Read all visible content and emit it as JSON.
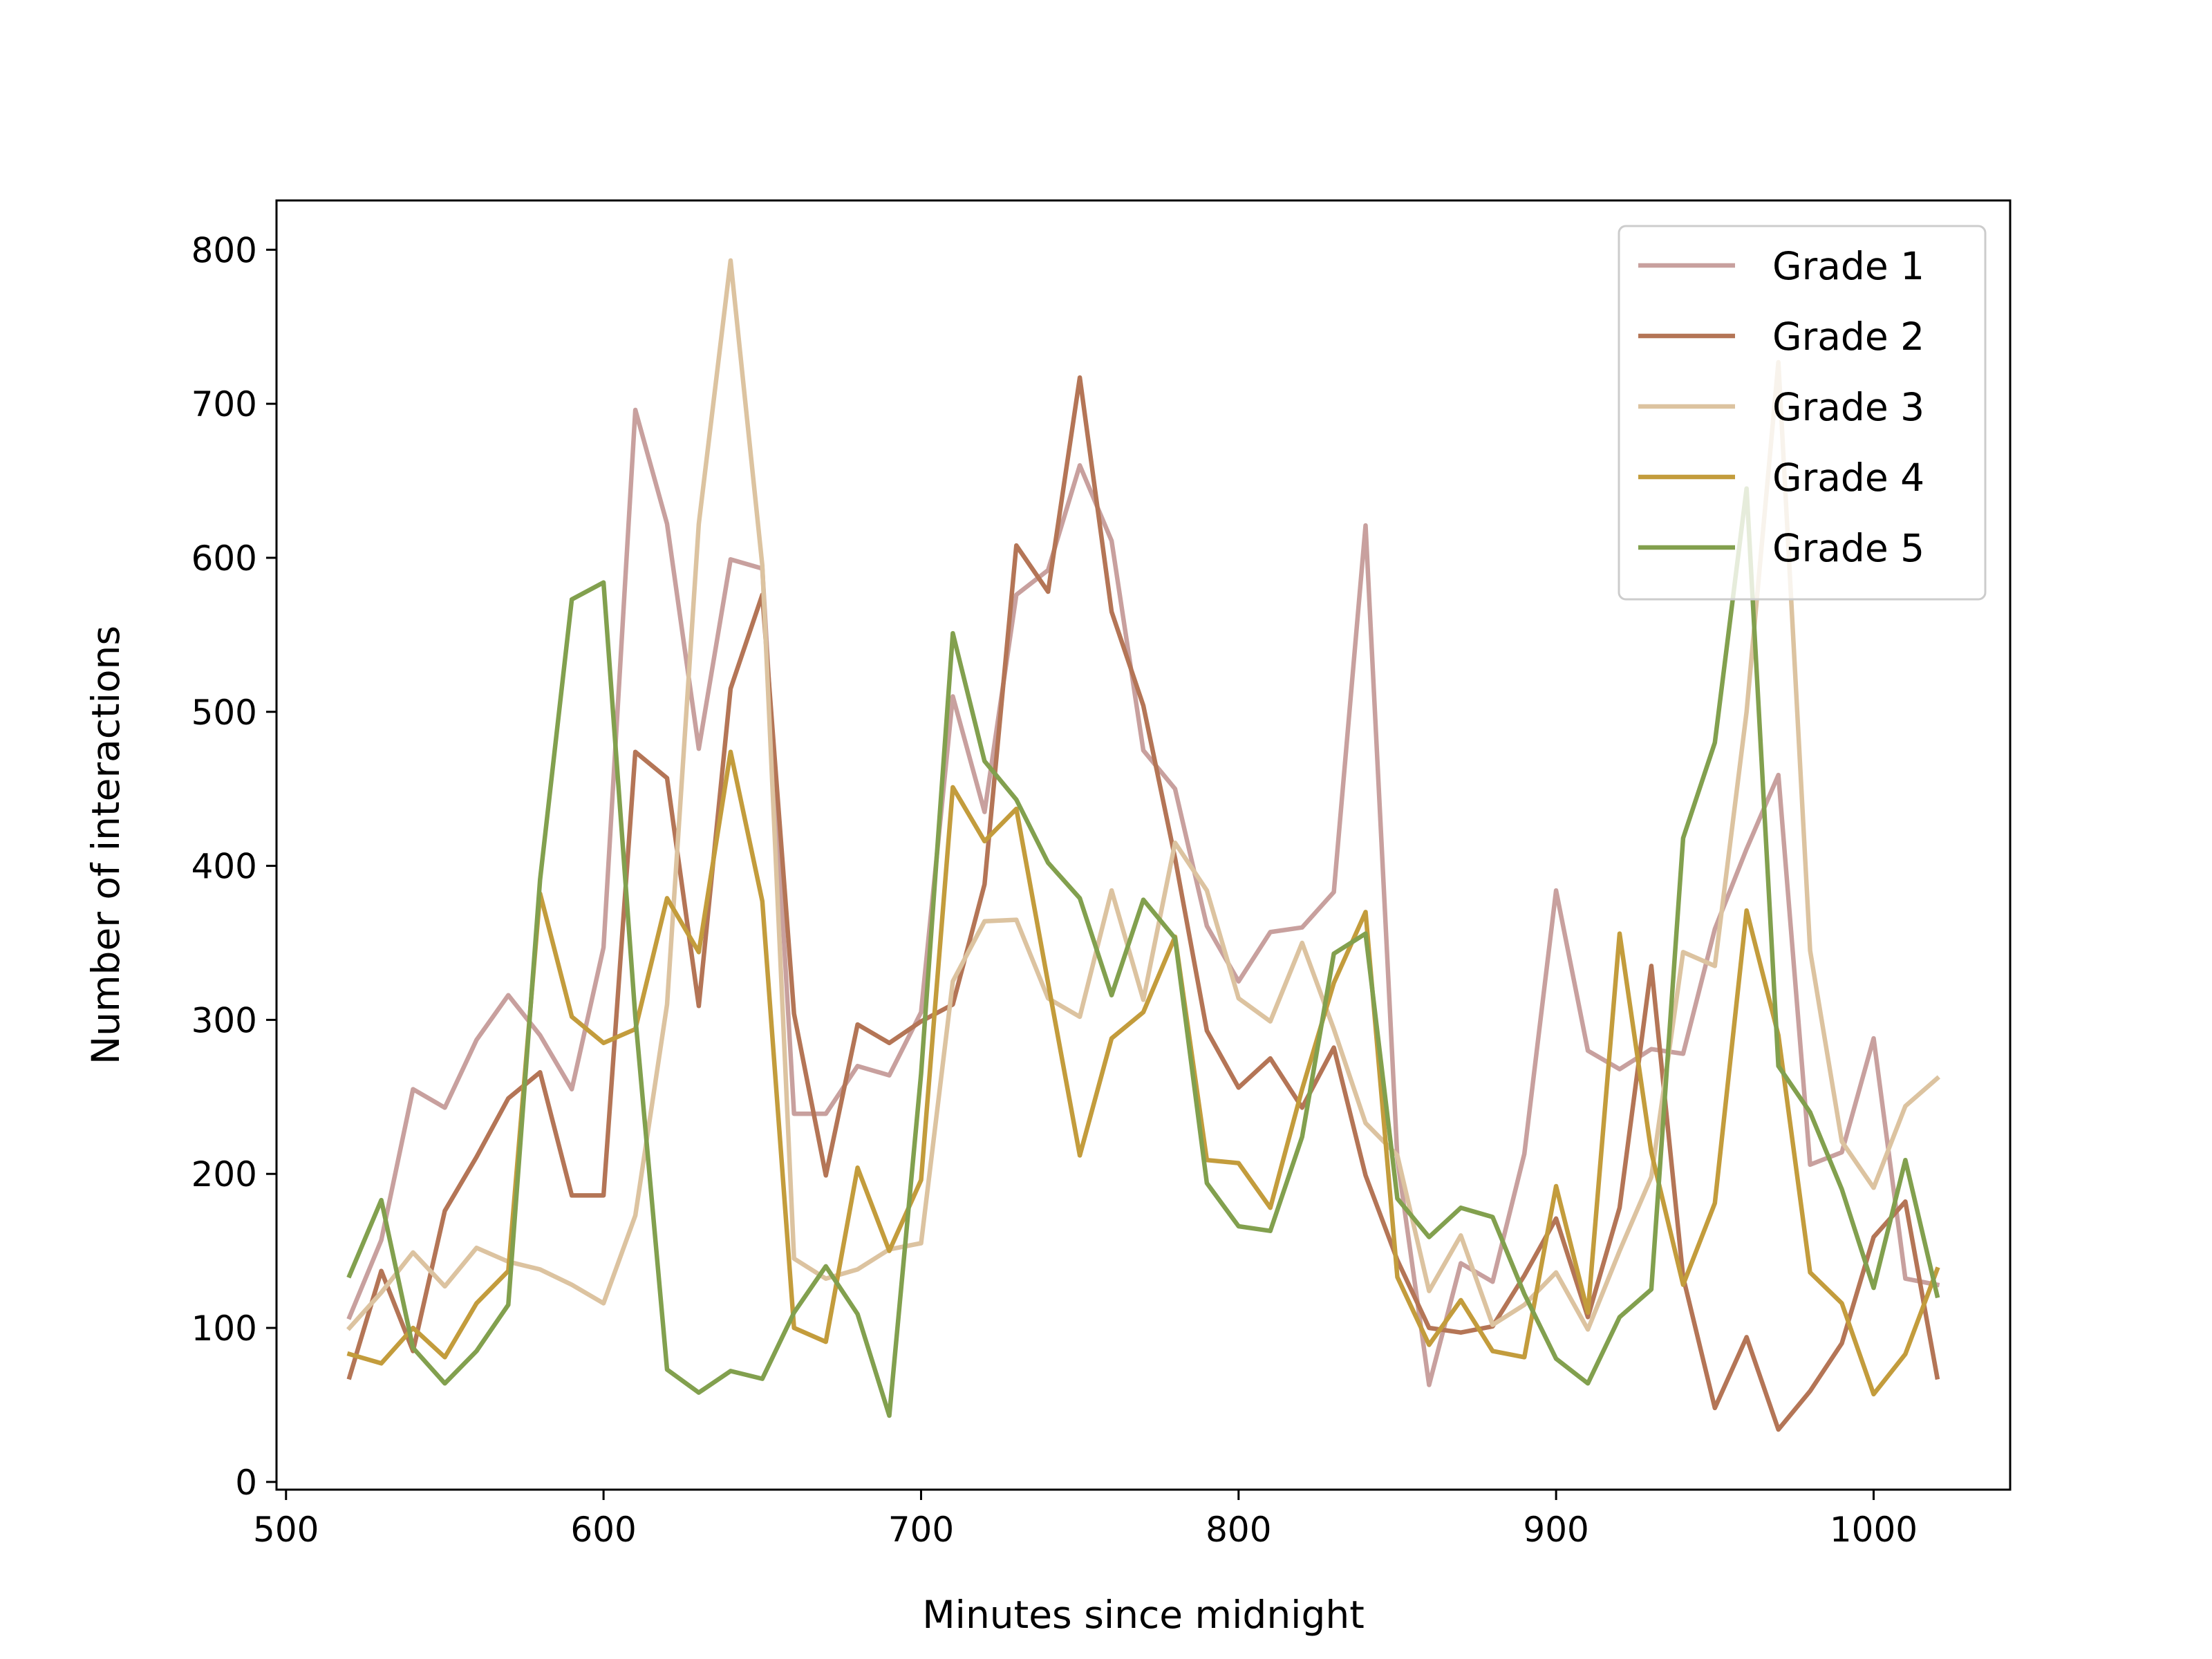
{
  "chart_data": {
    "type": "line",
    "title": "",
    "xlabel": "Minutes since midnight",
    "ylabel": "Number of interactions",
    "xlim": [
      497,
      1043
    ],
    "ylim": [
      -5,
      832
    ],
    "xticks": [
      500,
      600,
      700,
      800,
      900,
      1000
    ],
    "yticks": [
      0,
      100,
      200,
      300,
      400,
      500,
      600,
      700,
      800
    ],
    "grid": false,
    "legend_position": "top-right",
    "x": [
      520,
      530,
      540,
      550,
      560,
      570,
      580,
      590,
      600,
      610,
      620,
      630,
      640,
      650,
      660,
      670,
      680,
      690,
      700,
      710,
      720,
      730,
      740,
      750,
      760,
      770,
      780,
      790,
      800,
      810,
      820,
      830,
      840,
      850,
      860,
      870,
      880,
      890,
      900,
      910,
      920,
      930,
      940,
      950,
      960,
      970,
      980,
      990,
      1000,
      1010,
      1020
    ],
    "series": [
      {
        "name": "Grade 1",
        "color": "#c8a09e",
        "values": [
          107,
          157,
          255,
          243,
          287,
          316,
          290,
          255,
          347,
          696,
          622,
          476,
          599,
          593,
          239,
          239,
          270,
          264,
          305,
          510,
          435,
          576,
          592,
          660,
          611,
          475,
          450,
          361,
          325,
          357,
          360,
          383,
          621,
          210,
          63,
          142,
          130,
          213,
          384,
          280,
          268,
          281,
          278,
          359,
          411,
          459,
          206,
          214,
          288,
          132,
          128
        ]
      },
      {
        "name": "Grade 2",
        "color": "#b47556",
        "values": [
          68,
          137,
          85,
          176,
          211,
          249,
          266,
          186,
          186,
          474,
          457,
          309,
          515,
          576,
          304,
          199,
          297,
          285,
          299,
          310,
          388,
          608,
          578,
          717,
          565,
          504,
          405,
          293,
          256,
          275,
          243,
          282,
          199,
          144,
          100,
          97,
          101,
          134,
          171,
          107,
          178,
          335,
          133,
          48,
          94,
          34,
          59,
          90,
          159,
          182,
          68
        ]
      },
      {
        "name": "Grade 3",
        "color": "#dcc3a0",
        "values": [
          100,
          123,
          149,
          127,
          152,
          143,
          138,
          128,
          116,
          173,
          310,
          622,
          793,
          595,
          145,
          132,
          138,
          151,
          155,
          325,
          364,
          365,
          314,
          302,
          384,
          313,
          415,
          384,
          314,
          299,
          350,
          294,
          233,
          212,
          124,
          160,
          102,
          115,
          136,
          99,
          150,
          198,
          344,
          335,
          500,
          727,
          345,
          221,
          191,
          244,
          262
        ]
      },
      {
        "name": "Grade 4",
        "color": "#c39c3c",
        "values": [
          83,
          77,
          100,
          81,
          116,
          137,
          382,
          302,
          285,
          294,
          379,
          344,
          474,
          377,
          100,
          91,
          204,
          150,
          196,
          451,
          416,
          437,
          324,
          212,
          288,
          305,
          354,
          209,
          207,
          178,
          255,
          324,
          370,
          133,
          89,
          118,
          85,
          81,
          192,
          110,
          356,
          214,
          128,
          181,
          371,
          290,
          136,
          116,
          57,
          83,
          138
        ]
      },
      {
        "name": "Grade 5",
        "color": "#82a04e",
        "values": [
          134,
          183,
          87,
          64,
          85,
          115,
          391,
          573,
          584,
          302,
          73,
          58,
          72,
          67,
          110,
          140,
          109,
          43,
          265,
          551,
          468,
          443,
          402,
          379,
          316,
          378,
          353,
          194,
          166,
          163,
          224,
          343,
          356,
          184,
          159,
          178,
          172,
          122,
          80,
          64,
          107,
          125,
          418,
          480,
          645,
          270,
          240,
          190,
          126,
          209,
          121
        ]
      }
    ]
  }
}
